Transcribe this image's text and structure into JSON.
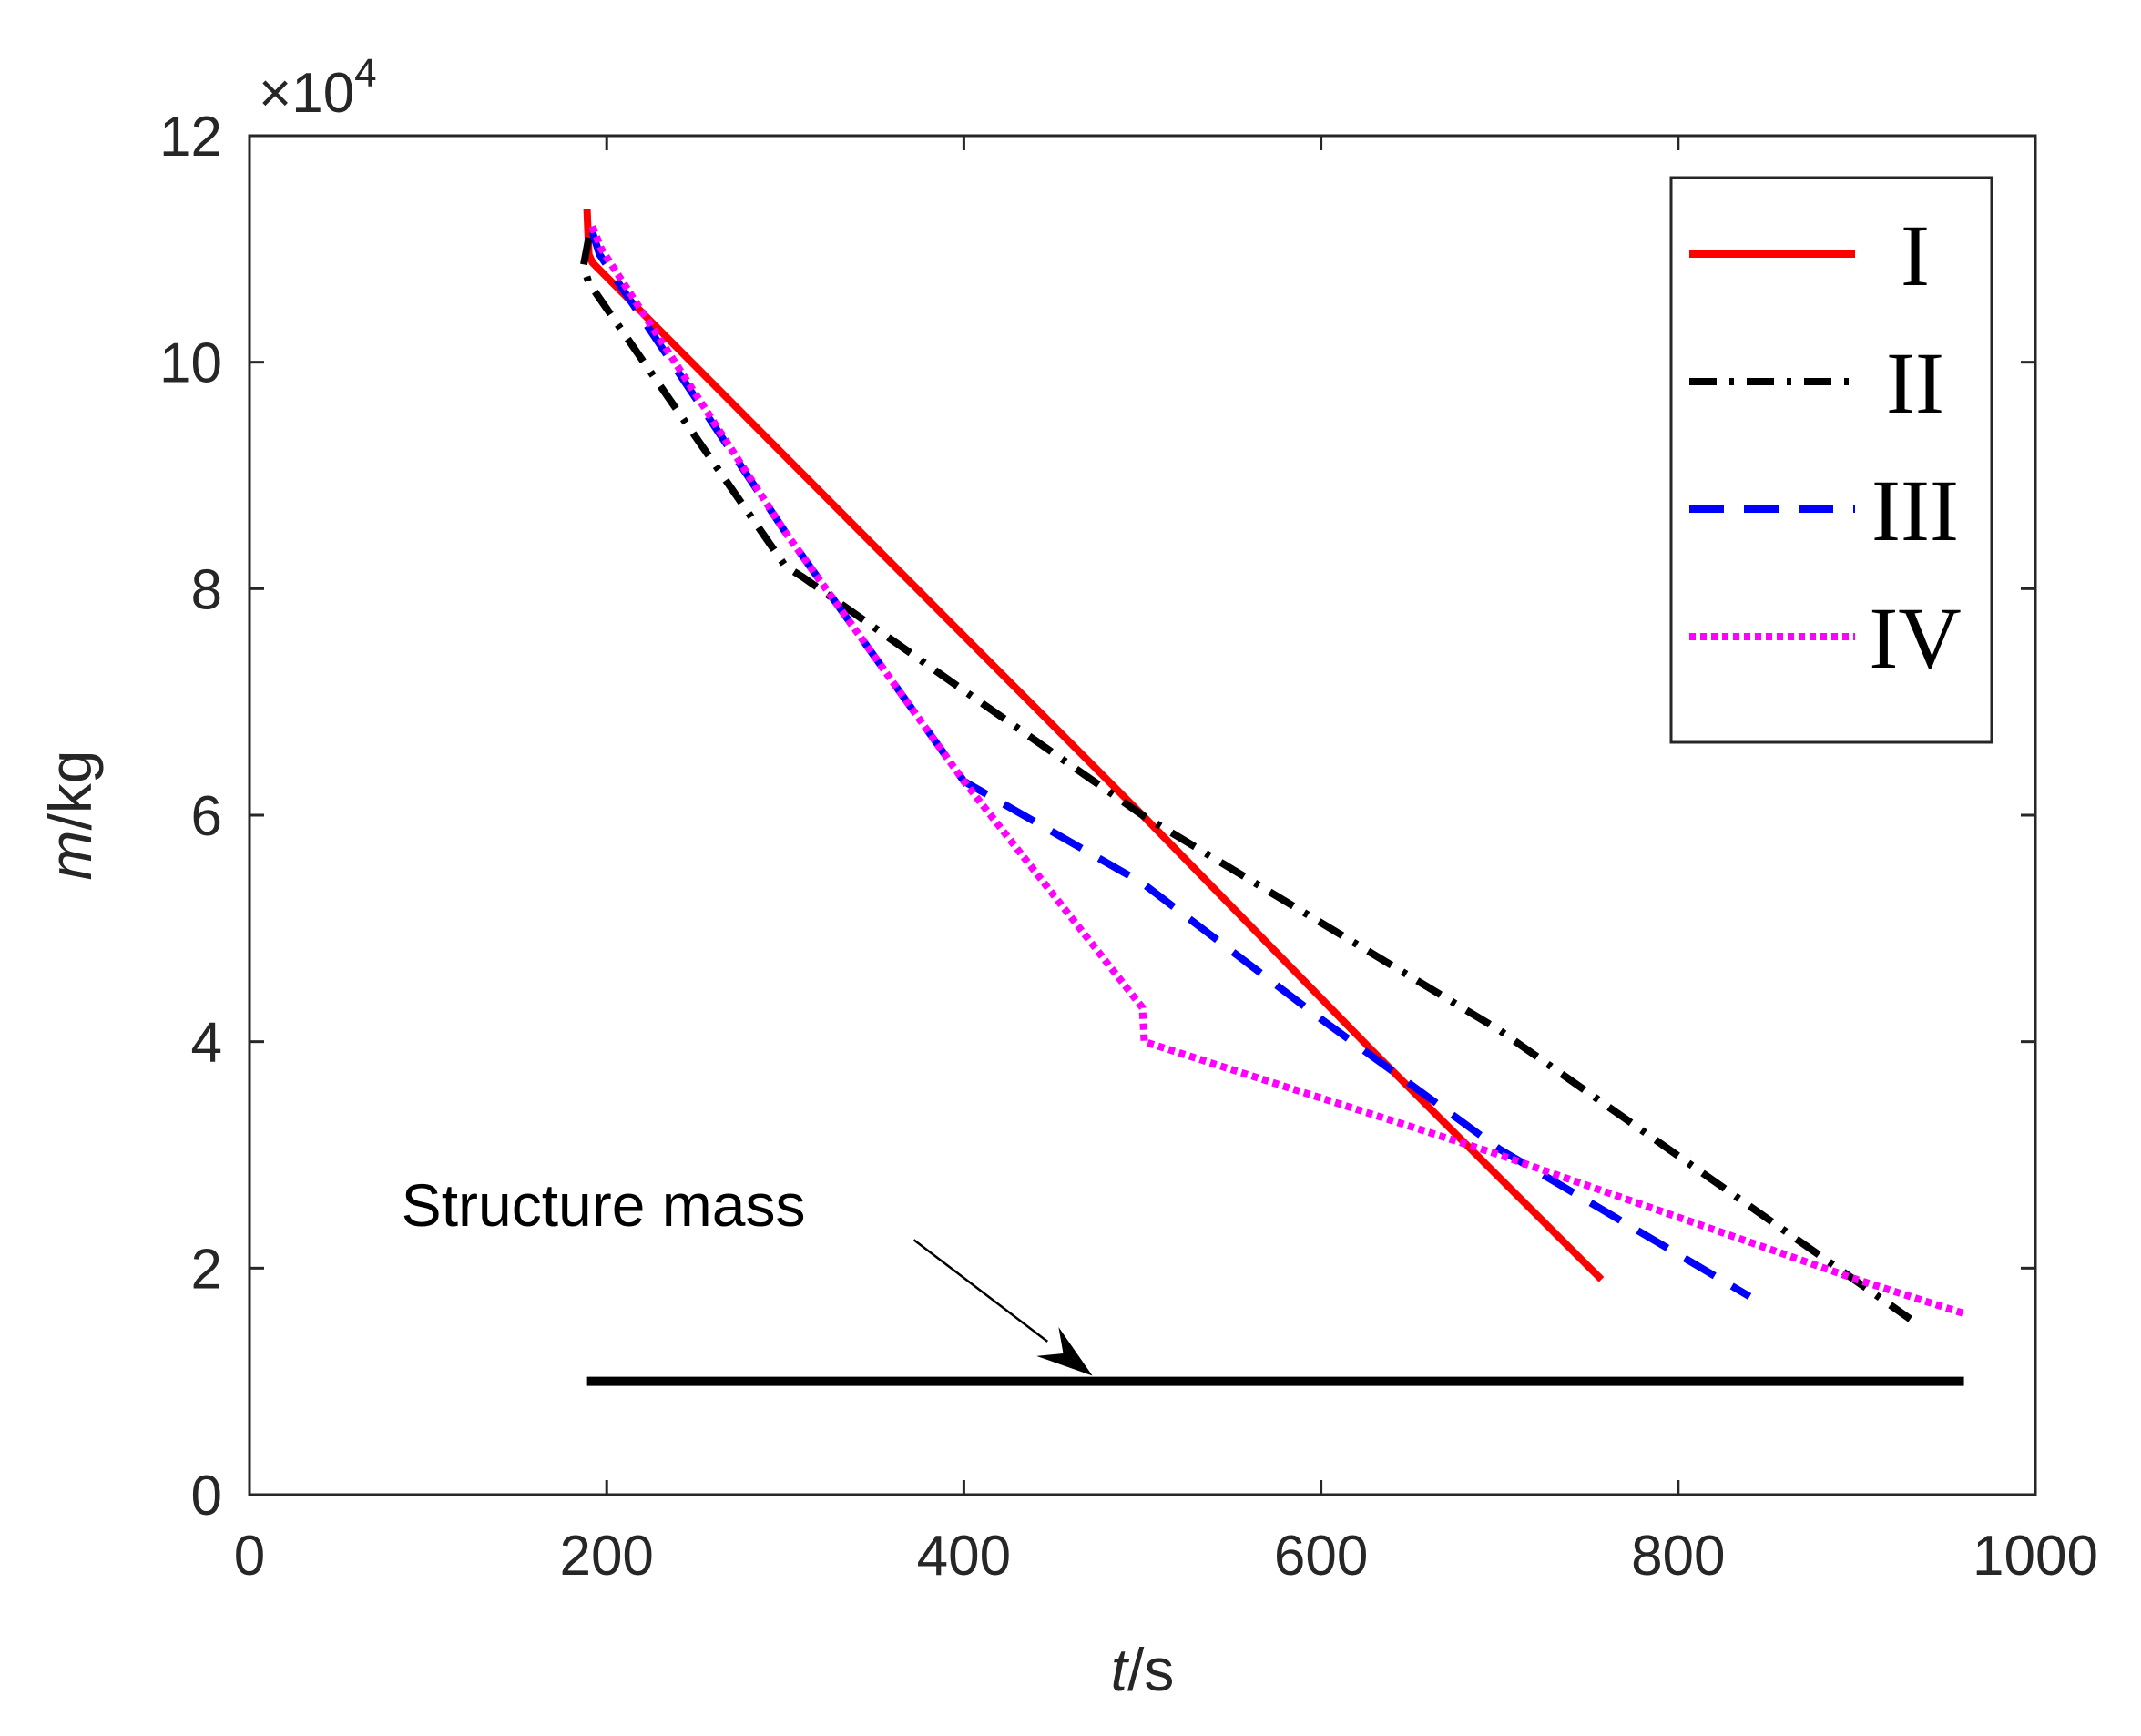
{
  "chart_data": {
    "type": "line",
    "title": "",
    "xlabel_italic": "t",
    "xlabel_unit": "/s",
    "ylabel_italic": "m",
    "ylabel_unit": "/kg",
    "exponent_label": "×10",
    "exponent_power": "4",
    "xlim": [
      0,
      1000
    ],
    "ylim": [
      0,
      12
    ],
    "y_scale": 10000,
    "xticks": [
      0,
      200,
      400,
      600,
      800,
      1000
    ],
    "yticks": [
      0,
      2,
      4,
      6,
      8,
      10,
      12
    ],
    "xtick_labels": [
      "0",
      "200",
      "400",
      "600",
      "800",
      "1000"
    ],
    "ytick_labels": [
      "0",
      "2",
      "4",
      "6",
      "8",
      "10",
      "12"
    ],
    "grid": false,
    "legend_position": "top-right",
    "series": [
      {
        "name": "I",
        "color": "#ff0000",
        "dash": "solid",
        "points": [
          [
            189,
            11.35
          ],
          [
            190,
            10.95
          ],
          [
            192,
            10.88
          ],
          [
            380,
            7.9
          ],
          [
            500,
            6.0
          ],
          [
            630,
            3.9
          ],
          [
            757,
            1.9
          ]
        ]
      },
      {
        "name": "II",
        "color": "#000000",
        "dash": "dashdot",
        "points": [
          [
            190,
            11.1
          ],
          [
            187,
            10.85
          ],
          [
            190,
            10.7
          ],
          [
            300,
            8.2
          ],
          [
            310,
            8.1
          ],
          [
            400,
            7.1
          ],
          [
            500,
            6.0
          ],
          [
            700,
            4.1
          ],
          [
            930,
            1.55
          ]
        ]
      },
      {
        "name": "III",
        "color": "#0000ff",
        "dash": "dashed",
        "points": [
          [
            192,
            11.15
          ],
          [
            196,
            10.95
          ],
          [
            300,
            8.5
          ],
          [
            400,
            6.3
          ],
          [
            500,
            5.4
          ],
          [
            600,
            4.2
          ],
          [
            700,
            3.05
          ],
          [
            840,
            1.75
          ]
        ]
      },
      {
        "name": "IV",
        "color": "#ff00ff",
        "dash": "dotted",
        "points": [
          [
            192,
            11.2
          ],
          [
            197,
            11.0
          ],
          [
            300,
            8.5
          ],
          [
            400,
            6.3
          ],
          [
            500,
            4.3
          ],
          [
            501,
            4.0
          ],
          [
            700,
            3.0
          ],
          [
            900,
            1.9
          ],
          [
            960,
            1.6
          ]
        ]
      }
    ],
    "reference_line": {
      "name": "Structure mass",
      "color": "#000000",
      "x": [
        189,
        960
      ],
      "y": 1.0
    },
    "annotation": {
      "text": "Structure mass",
      "text_at": [
        85,
        2.55
      ],
      "arrow_from": [
        372,
        2.25
      ],
      "arrow_to": [
        472,
        1.05
      ]
    }
  }
}
